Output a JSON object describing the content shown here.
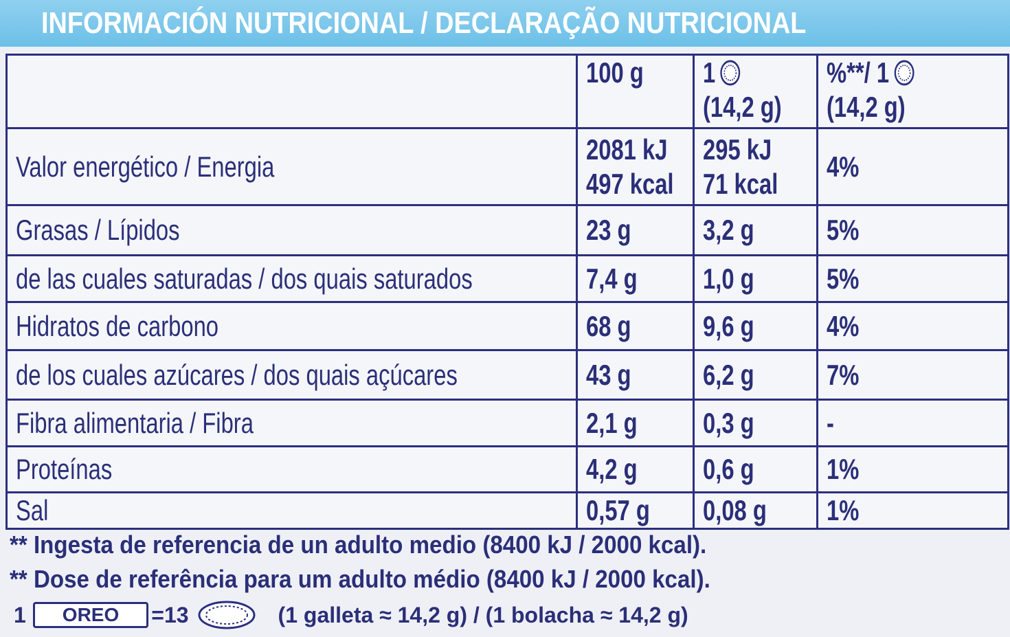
{
  "title": "INFORMACIÓN NUTRICIONAL / DECLARAÇÃO NUTRICIONAL",
  "table": {
    "header": [
      [
        "100 g"
      ],
      [
        "1",
        "(14,2 g)"
      ],
      [
        "%**/ 1",
        "(14,2 g)"
      ]
    ],
    "rows": [
      {
        "label": "Valor energético / Energia",
        "cells": [
          [
            "2081 kJ",
            "497 kcal"
          ],
          [
            "295 kJ",
            "71 kcal"
          ],
          [
            "4%"
          ]
        ]
      },
      {
        "label": "Grasas / Lípidos",
        "cells": [
          [
            "23 g"
          ],
          [
            "3,2 g"
          ],
          [
            "5%"
          ]
        ]
      },
      {
        "label": "de las cuales saturadas / dos quais saturados",
        "cells": [
          [
            "7,4 g"
          ],
          [
            "1,0 g"
          ],
          [
            "5%"
          ]
        ]
      },
      {
        "label": "Hidratos de carbono",
        "cells": [
          [
            "68 g"
          ],
          [
            "9,6 g"
          ],
          [
            "4%"
          ]
        ]
      },
      {
        "label": "de los cuales azúcares / dos quais açúcares",
        "cells": [
          [
            "43 g"
          ],
          [
            "6,2 g"
          ],
          [
            "7%"
          ]
        ]
      },
      {
        "label": "Fibra alimentaria / Fibra",
        "cells": [
          [
            "2,1 g"
          ],
          [
            "0,3 g"
          ],
          [
            "-"
          ]
        ]
      },
      {
        "label": "Proteínas",
        "cells": [
          [
            "4,2 g"
          ],
          [
            "0,6 g"
          ],
          [
            "1%"
          ]
        ]
      },
      {
        "label": "Sal",
        "cells": [
          [
            "0,57 g"
          ],
          [
            "0,08 g"
          ],
          [
            "1%"
          ]
        ]
      }
    ]
  },
  "footnotes": [
    "** Ingesta de referencia de un adulto medio (8400 kJ / 2000 kcal).",
    "** Dose de referência para um adulto médio (8400 kJ / 2000 kcal)."
  ],
  "serving": {
    "count": "1",
    "brand": "OREO",
    "equals": "=13",
    "note": "(1 galleta ≈ 14,2 g) / (1 bolacha ≈ 14,2 g)"
  }
}
